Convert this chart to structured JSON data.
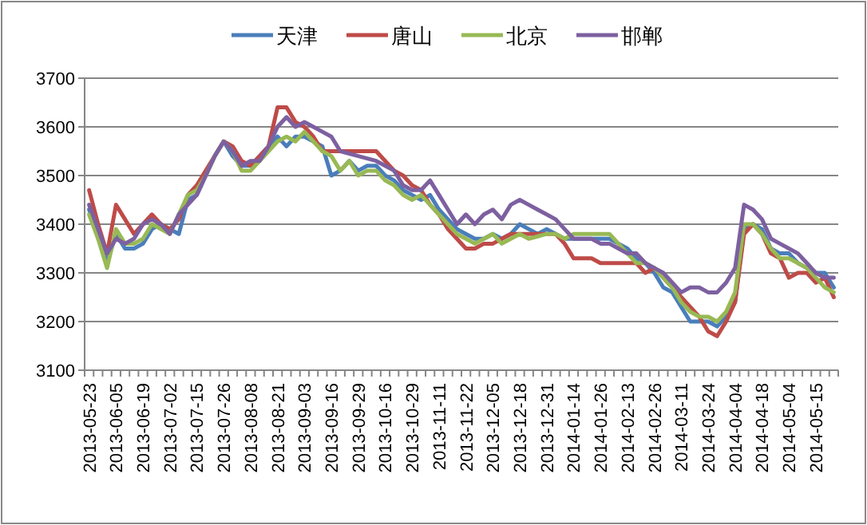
{
  "chart_data": {
    "type": "line",
    "categories": [
      "2013-05-23",
      null,
      null,
      "2013-06-05",
      null,
      null,
      "2013-06-19",
      null,
      null,
      "2013-07-02",
      null,
      null,
      "2013-07-15",
      null,
      null,
      "2013-07-26",
      null,
      null,
      "2013-08-08",
      null,
      null,
      "2013-08-21",
      null,
      null,
      "2013-09-03",
      null,
      null,
      "2013-09-16",
      null,
      null,
      "2013-09-29",
      null,
      null,
      "2013-10-16",
      null,
      null,
      "2013-10-29",
      null,
      null,
      "2013-11-11",
      null,
      null,
      "2013-11-22",
      null,
      null,
      "2013-12-05",
      null,
      null,
      "2013-12-18",
      null,
      null,
      "2013-12-31",
      null,
      null,
      "2014-01-14",
      null,
      null,
      "2014-01-26",
      null,
      null,
      "2014-02-13",
      null,
      null,
      "2014-02-26",
      null,
      null,
      "2014-03-11",
      null,
      null,
      "2014-03-24",
      null,
      null,
      "2014-04-04",
      null,
      null,
      "2014-04-18",
      null,
      null,
      "2014-05-04",
      null,
      null,
      "2014-05-15",
      null,
      null
    ],
    "series": [
      {
        "name": "天津",
        "color": "#4a7ebb",
        "values": [
          3430,
          3380,
          3320,
          3380,
          3350,
          3350,
          3360,
          3390,
          3400,
          3390,
          3380,
          3450,
          3460,
          3500,
          3540,
          3570,
          3540,
          3520,
          3520,
          3540,
          3560,
          3580,
          3560,
          3580,
          3580,
          3570,
          3560,
          3500,
          3510,
          3530,
          3510,
          3520,
          3520,
          3500,
          3490,
          3470,
          3460,
          3450,
          3460,
          3430,
          3410,
          3390,
          3380,
          3370,
          3370,
          3380,
          3370,
          3380,
          3400,
          3390,
          3380,
          3390,
          3380,
          3370,
          3370,
          3370,
          3370,
          3370,
          3370,
          3360,
          3350,
          3330,
          3320,
          3300,
          3270,
          3260,
          3230,
          3200,
          3200,
          3200,
          3190,
          3210,
          3240,
          3390,
          3400,
          3390,
          3350,
          3340,
          3340,
          3320,
          3310,
          3300,
          3300,
          3270
        ]
      },
      {
        "name": "唐山",
        "color": "#be4b48",
        "values": [
          3470,
          3400,
          3340,
          3440,
          3410,
          3380,
          3400,
          3420,
          3400,
          3390,
          3410,
          3460,
          3480,
          3510,
          3540,
          3570,
          3560,
          3530,
          3520,
          3540,
          3560,
          3640,
          3640,
          3610,
          3600,
          3580,
          3550,
          3550,
          3550,
          3550,
          3550,
          3550,
          3550,
          3530,
          3510,
          3500,
          3480,
          3470,
          3440,
          3420,
          3390,
          3370,
          3350,
          3350,
          3360,
          3360,
          3370,
          3380,
          3380,
          3380,
          3380,
          3380,
          3380,
          3360,
          3330,
          3330,
          3330,
          3320,
          3320,
          3320,
          3320,
          3320,
          3300,
          3310,
          3290,
          3270,
          3250,
          3230,
          3210,
          3180,
          3170,
          3200,
          3240,
          3380,
          3400,
          3380,
          3340,
          3330,
          3290,
          3300,
          3300,
          3280,
          3290,
          3250
        ]
      },
      {
        "name": "北京",
        "color": "#98b954",
        "values": [
          3420,
          3370,
          3310,
          3390,
          3360,
          3360,
          3370,
          3400,
          3390,
          3380,
          3420,
          3460,
          3470,
          3500,
          3540,
          3570,
          3550,
          3510,
          3510,
          3530,
          3550,
          3570,
          3580,
          3570,
          3590,
          3570,
          3550,
          3540,
          3510,
          3530,
          3500,
          3510,
          3510,
          3490,
          3480,
          3460,
          3450,
          3460,
          3440,
          3420,
          3400,
          3380,
          3370,
          3360,
          3370,
          3380,
          3360,
          3370,
          3380,
          3370,
          3375,
          3380,
          3380,
          3370,
          3380,
          3380,
          3380,
          3380,
          3380,
          3360,
          3340,
          3320,
          3320,
          3310,
          3290,
          3270,
          3240,
          3220,
          3210,
          3210,
          3200,
          3220,
          3260,
          3400,
          3400,
          3380,
          3350,
          3330,
          3330,
          3320,
          3310,
          3290,
          3270,
          3260
        ]
      },
      {
        "name": "邯郸",
        "color": "#7d60a0",
        "values": [
          3440,
          3390,
          3340,
          3370,
          3360,
          3370,
          3400,
          3410,
          3400,
          3380,
          3420,
          3440,
          3460,
          3500,
          3540,
          3570,
          3550,
          3520,
          3530,
          3530,
          3560,
          3600,
          3620,
          3600,
          3610,
          3600,
          3590,
          3580,
          3550,
          3545,
          3540,
          3535,
          3530,
          3520,
          3510,
          3480,
          3470,
          3470,
          3490,
          3460,
          3430,
          3400,
          3420,
          3400,
          3420,
          3430,
          3410,
          3440,
          3450,
          3440,
          3430,
          3420,
          3410,
          3390,
          3370,
          3370,
          3370,
          3360,
          3360,
          3350,
          3340,
          3340,
          3320,
          3310,
          3300,
          3280,
          3260,
          3270,
          3270,
          3260,
          3260,
          3280,
          3310,
          3440,
          3430,
          3410,
          3370,
          3360,
          3350,
          3340,
          3320,
          3300,
          3290,
          3290
        ]
      }
    ],
    "ylim": [
      3100,
      3700
    ],
    "yticks": [
      3100,
      3200,
      3300,
      3400,
      3500,
      3600,
      3700
    ],
    "grid": "y",
    "legend": "top",
    "line_style": "solid"
  }
}
